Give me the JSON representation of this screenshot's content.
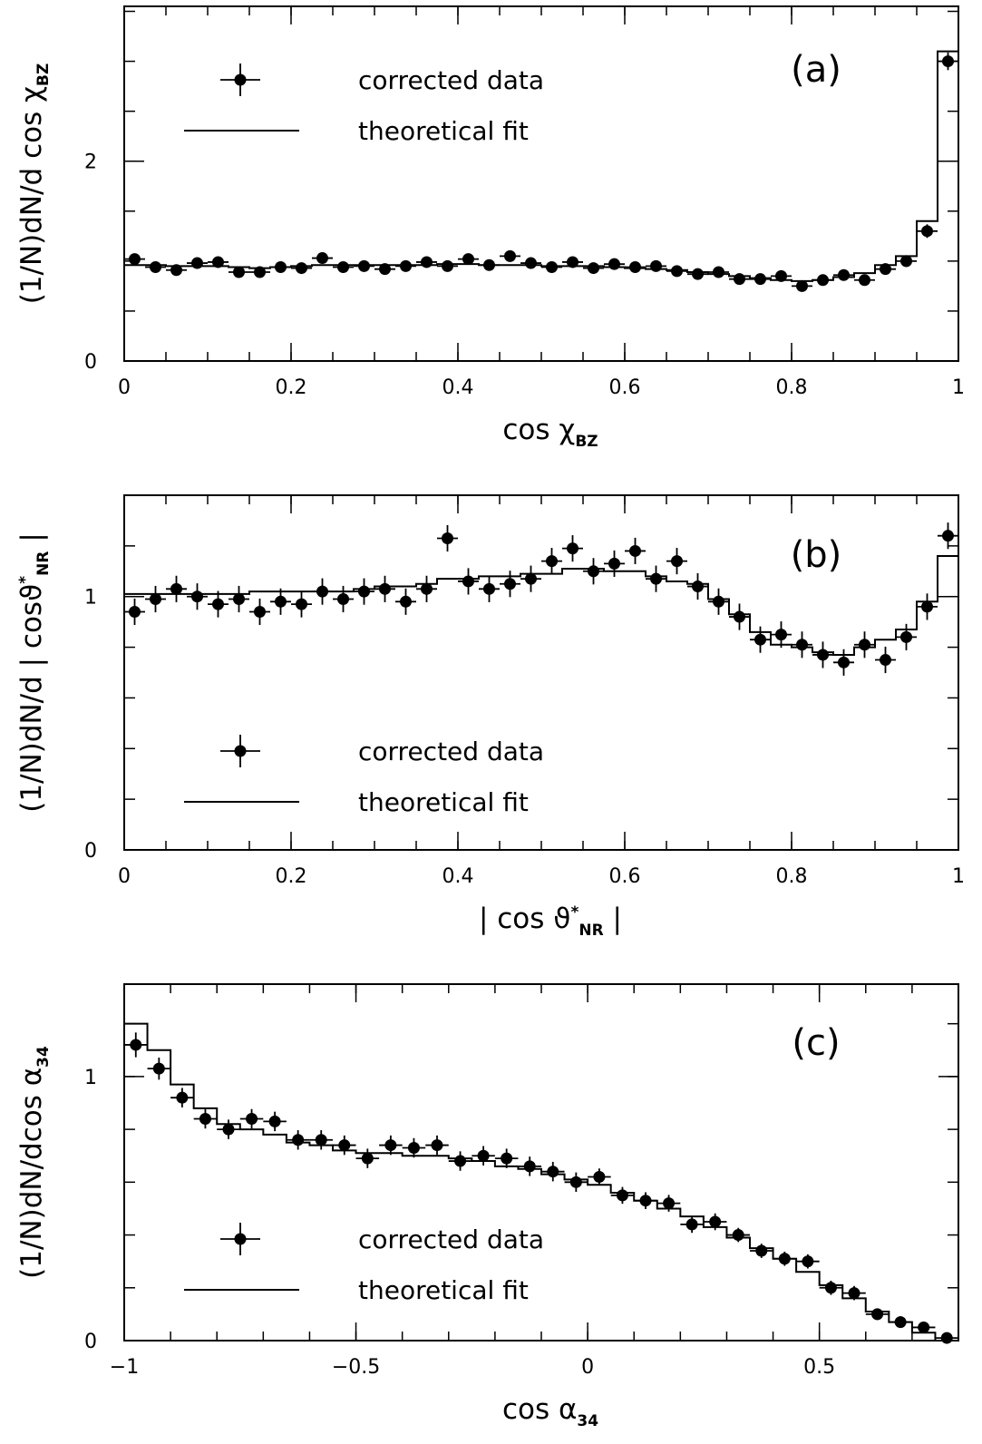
{
  "colors": {
    "ink": "#000000",
    "background": "#ffffff"
  },
  "chart_data": [
    {
      "type": "line",
      "panel_label": "(a)",
      "xlabel": "cos χ",
      "xlabel_sub": "BZ",
      "ylabel": "(1/N)dN/d cos χ",
      "ylabel_sub": "BZ",
      "xlim": [
        0,
        1
      ],
      "ylim": [
        0,
        3.55
      ],
      "x_ticks": [
        "0",
        "0.2",
        "0.4",
        "0.6",
        "0.8",
        "1"
      ],
      "x_tick_values": [
        0,
        0.2,
        0.4,
        0.6,
        0.8,
        1
      ],
      "y_ticks": [
        "0",
        "2"
      ],
      "y_tick_values": [
        0,
        2
      ],
      "legend": {
        "position": "top-left",
        "entries": [
          "corrected data",
          "theoretical fit"
        ]
      },
      "bin_edges": [
        0,
        0.025,
        0.05,
        0.075,
        0.1,
        0.125,
        0.15,
        0.175,
        0.2,
        0.225,
        0.25,
        0.275,
        0.3,
        0.325,
        0.35,
        0.375,
        0.4,
        0.425,
        0.45,
        0.475,
        0.5,
        0.525,
        0.55,
        0.575,
        0.6,
        0.625,
        0.65,
        0.675,
        0.7,
        0.725,
        0.75,
        0.775,
        0.8,
        0.825,
        0.85,
        0.875,
        0.9,
        0.925,
        0.95,
        0.975,
        1.0
      ],
      "series": [
        {
          "name": "corrected data",
          "kind": "points",
          "x": [
            0.0125,
            0.0375,
            0.0625,
            0.0875,
            0.1125,
            0.1375,
            0.1625,
            0.1875,
            0.2125,
            0.2375,
            0.2625,
            0.2875,
            0.3125,
            0.3375,
            0.3625,
            0.3875,
            0.4125,
            0.4375,
            0.4625,
            0.4875,
            0.5125,
            0.5375,
            0.5625,
            0.5875,
            0.6125,
            0.6375,
            0.6625,
            0.6875,
            0.7125,
            0.7375,
            0.7625,
            0.7875,
            0.8125,
            0.8375,
            0.8625,
            0.8875,
            0.9125,
            0.9375,
            0.9625,
            0.9875
          ],
          "y": [
            1.02,
            0.94,
            0.91,
            0.98,
            0.99,
            0.89,
            0.89,
            0.94,
            0.93,
            1.03,
            0.94,
            0.95,
            0.92,
            0.95,
            0.99,
            0.95,
            1.02,
            0.96,
            1.05,
            0.98,
            0.94,
            0.99,
            0.93,
            0.97,
            0.94,
            0.95,
            0.9,
            0.87,
            0.89,
            0.82,
            0.82,
            0.85,
            0.75,
            0.81,
            0.86,
            0.81,
            0.92,
            1.0,
            1.3,
            3.0
          ],
          "yerr": [
            0.035,
            0.035,
            0.035,
            0.035,
            0.035,
            0.035,
            0.035,
            0.035,
            0.035,
            0.035,
            0.035,
            0.035,
            0.035,
            0.035,
            0.035,
            0.035,
            0.035,
            0.035,
            0.035,
            0.035,
            0.035,
            0.035,
            0.035,
            0.035,
            0.035,
            0.035,
            0.035,
            0.035,
            0.035,
            0.035,
            0.035,
            0.035,
            0.035,
            0.035,
            0.035,
            0.035,
            0.035,
            0.04,
            0.05,
            0.07
          ]
        },
        {
          "name": "theoretical fit",
          "kind": "histogram",
          "values": [
            0.96,
            0.96,
            0.95,
            0.95,
            0.95,
            0.94,
            0.93,
            0.94,
            0.95,
            0.96,
            0.96,
            0.96,
            0.96,
            0.96,
            0.96,
            0.97,
            0.97,
            0.96,
            0.96,
            0.96,
            0.95,
            0.95,
            0.95,
            0.94,
            0.93,
            0.92,
            0.91,
            0.89,
            0.87,
            0.85,
            0.83,
            0.81,
            0.8,
            0.81,
            0.84,
            0.88,
            0.96,
            1.05,
            1.4,
            3.1
          ]
        }
      ]
    },
    {
      "type": "line",
      "panel_label": "(b)",
      "xlabel": "| cos ϑ",
      "xlabel_sup": "*",
      "xlabel_sub": "NR",
      "xlabel_end": " |",
      "ylabel": "(1/N)dN/d | cosϑ",
      "ylabel_sup": "*",
      "ylabel_sub": "NR",
      "ylabel_end": " |",
      "xlim": [
        0,
        1
      ],
      "ylim": [
        0,
        1.4
      ],
      "x_ticks": [
        "0",
        "0.2",
        "0.4",
        "0.6",
        "0.8",
        "1"
      ],
      "x_tick_values": [
        0,
        0.2,
        0.4,
        0.6,
        0.8,
        1
      ],
      "y_ticks": [
        "0",
        "1"
      ],
      "y_tick_values": [
        0,
        1
      ],
      "legend": {
        "position": "bottom-left",
        "entries": [
          "corrected data",
          "theoretical fit"
        ]
      },
      "bin_edges": [
        0,
        0.025,
        0.05,
        0.075,
        0.1,
        0.125,
        0.15,
        0.175,
        0.2,
        0.225,
        0.25,
        0.275,
        0.3,
        0.325,
        0.35,
        0.375,
        0.4,
        0.425,
        0.45,
        0.475,
        0.5,
        0.525,
        0.55,
        0.575,
        0.6,
        0.625,
        0.65,
        0.675,
        0.7,
        0.725,
        0.75,
        0.775,
        0.8,
        0.825,
        0.85,
        0.875,
        0.9,
        0.925,
        0.95,
        0.975,
        1.0
      ],
      "series": [
        {
          "name": "corrected data",
          "kind": "points",
          "x": [
            0.0125,
            0.0375,
            0.0625,
            0.0875,
            0.1125,
            0.1375,
            0.1625,
            0.1875,
            0.2125,
            0.2375,
            0.2625,
            0.2875,
            0.3125,
            0.3375,
            0.3625,
            0.3875,
            0.4125,
            0.4375,
            0.4625,
            0.4875,
            0.5125,
            0.5375,
            0.5625,
            0.5875,
            0.6125,
            0.6375,
            0.6625,
            0.6875,
            0.7125,
            0.7375,
            0.7625,
            0.7875,
            0.8125,
            0.8375,
            0.8625,
            0.8875,
            0.9125,
            0.9375,
            0.9625,
            0.9875
          ],
          "y": [
            0.94,
            0.99,
            1.03,
            1.0,
            0.97,
            0.99,
            0.94,
            0.98,
            0.97,
            1.02,
            0.99,
            1.02,
            1.03,
            0.98,
            1.03,
            1.23,
            1.06,
            1.03,
            1.05,
            1.07,
            1.14,
            1.19,
            1.1,
            1.13,
            1.18,
            1.07,
            1.14,
            1.04,
            0.98,
            0.92,
            0.83,
            0.85,
            0.81,
            0.77,
            0.74,
            0.81,
            0.75,
            0.84,
            0.96,
            1.24
          ],
          "yerr": [
            0.045,
            0.045,
            0.045,
            0.045,
            0.045,
            0.045,
            0.045,
            0.045,
            0.045,
            0.045,
            0.045,
            0.045,
            0.045,
            0.045,
            0.045,
            0.045,
            0.045,
            0.045,
            0.045,
            0.045,
            0.045,
            0.045,
            0.045,
            0.045,
            0.045,
            0.045,
            0.045,
            0.045,
            0.045,
            0.045,
            0.045,
            0.045,
            0.045,
            0.045,
            0.045,
            0.045,
            0.045,
            0.045,
            0.045,
            0.045
          ]
        },
        {
          "name": "theoretical fit",
          "kind": "histogram",
          "values": [
            1.01,
            1.01,
            1.01,
            1.01,
            1.01,
            1.01,
            1.02,
            1.02,
            1.02,
            1.02,
            1.02,
            1.03,
            1.04,
            1.04,
            1.05,
            1.07,
            1.07,
            1.08,
            1.08,
            1.09,
            1.09,
            1.11,
            1.11,
            1.1,
            1.1,
            1.08,
            1.06,
            1.05,
            0.99,
            0.93,
            0.86,
            0.81,
            0.8,
            0.78,
            0.77,
            0.8,
            0.83,
            0.87,
            0.98,
            1.16
          ]
        }
      ]
    },
    {
      "type": "line",
      "panel_label": "(c)",
      "xlabel": "cos α",
      "xlabel_sub": "34",
      "ylabel": "(1/N)dN/dcos α",
      "ylabel_sub": "34",
      "xlim": [
        -1,
        0.8
      ],
      "ylim": [
        0,
        1.35
      ],
      "x_ticks": [
        "−1",
        "−0.5",
        "0",
        "0.5"
      ],
      "x_tick_values": [
        -1,
        -0.5,
        0,
        0.5
      ],
      "y_ticks": [
        "0",
        "1"
      ],
      "y_tick_values": [
        0,
        1
      ],
      "legend": {
        "position": "bottom-left",
        "entries": [
          "corrected data",
          "theoretical fit"
        ]
      },
      "bin_edges": [
        -1.0,
        -0.95,
        -0.9,
        -0.85,
        -0.8,
        -0.75,
        -0.7,
        -0.65,
        -0.6,
        -0.55,
        -0.5,
        -0.45,
        -0.4,
        -0.35,
        -0.3,
        -0.25,
        -0.2,
        -0.15,
        -0.1,
        -0.05,
        0.0,
        0.05,
        0.1,
        0.15,
        0.2,
        0.25,
        0.3,
        0.35,
        0.4,
        0.45,
        0.5,
        0.55,
        0.6,
        0.65,
        0.7,
        0.75,
        0.8
      ],
      "series": [
        {
          "name": "corrected data",
          "kind": "points",
          "x": [
            -0.975,
            -0.925,
            -0.875,
            -0.825,
            -0.775,
            -0.725,
            -0.675,
            -0.625,
            -0.575,
            -0.525,
            -0.475,
            -0.425,
            -0.375,
            -0.325,
            -0.275,
            -0.225,
            -0.175,
            -0.125,
            -0.075,
            -0.025,
            0.025,
            0.075,
            0.125,
            0.175,
            0.225,
            0.275,
            0.325,
            0.375,
            0.425,
            0.475,
            0.525,
            0.575,
            0.625,
            0.675,
            0.725,
            0.775
          ],
          "y": [
            1.12,
            1.03,
            0.92,
            0.84,
            0.8,
            0.84,
            0.83,
            0.76,
            0.76,
            0.74,
            0.69,
            0.74,
            0.73,
            0.74,
            0.68,
            0.7,
            0.69,
            0.66,
            0.64,
            0.6,
            0.62,
            0.55,
            0.53,
            0.52,
            0.44,
            0.45,
            0.4,
            0.34,
            0.31,
            0.3,
            0.2,
            0.18,
            0.1,
            0.07,
            0.05,
            0.01
          ],
          "yerr": [
            0.04,
            0.035,
            0.03,
            0.03,
            0.03,
            0.03,
            0.03,
            0.03,
            0.03,
            0.03,
            0.03,
            0.03,
            0.03,
            0.03,
            0.03,
            0.03,
            0.03,
            0.03,
            0.03,
            0.03,
            0.025,
            0.025,
            0.025,
            0.025,
            0.025,
            0.025,
            0.02,
            0.02,
            0.02,
            0.02,
            0.02,
            0.02,
            0.015,
            0.015,
            0.015,
            0.012
          ]
        },
        {
          "name": "theoretical fit",
          "kind": "histogram",
          "values": [
            1.2,
            1.1,
            0.97,
            0.88,
            0.82,
            0.8,
            0.78,
            0.75,
            0.74,
            0.72,
            0.71,
            0.71,
            0.7,
            0.7,
            0.69,
            0.68,
            0.66,
            0.65,
            0.63,
            0.61,
            0.59,
            0.56,
            0.53,
            0.5,
            0.47,
            0.43,
            0.39,
            0.35,
            0.31,
            0.26,
            0.21,
            0.16,
            0.11,
            0.07,
            0.03,
            0.0
          ]
        }
      ]
    }
  ]
}
